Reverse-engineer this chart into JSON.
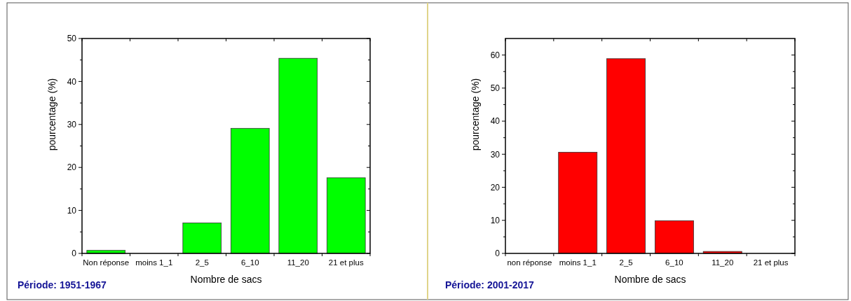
{
  "chart_data": [
    {
      "type": "bar",
      "categories": [
        "Non réponse",
        "moins 1_1",
        "2_5",
        "6_10",
        "11_20",
        "21 et plus"
      ],
      "values": [
        0.7,
        0,
        7.1,
        29.1,
        45.4,
        17.6
      ],
      "color": "#00ff00",
      "ylim": [
        0,
        50
      ],
      "yticks": [
        0,
        10,
        20,
        30,
        40,
        50
      ],
      "xlabel": "Nombre de sacs",
      "ylabel": "pourcentage (%)",
      "annotations": [
        "Période: 1951-1967"
      ]
    },
    {
      "type": "bar",
      "categories": [
        "non réponse",
        "moins 1_1",
        "2_5",
        "6_10",
        "11_20",
        "21 et plus"
      ],
      "values": [
        0,
        30.6,
        58.9,
        9.9,
        0.6,
        0
      ],
      "color": "#ff0000",
      "ylim": [
        0,
        65
      ],
      "yticks": [
        0,
        10,
        20,
        30,
        40,
        50,
        60
      ],
      "xlabel": "Nombre de sacs",
      "ylabel": "pourcentage (%)",
      "annotations": [
        "Période: 2001-2017"
      ]
    }
  ]
}
